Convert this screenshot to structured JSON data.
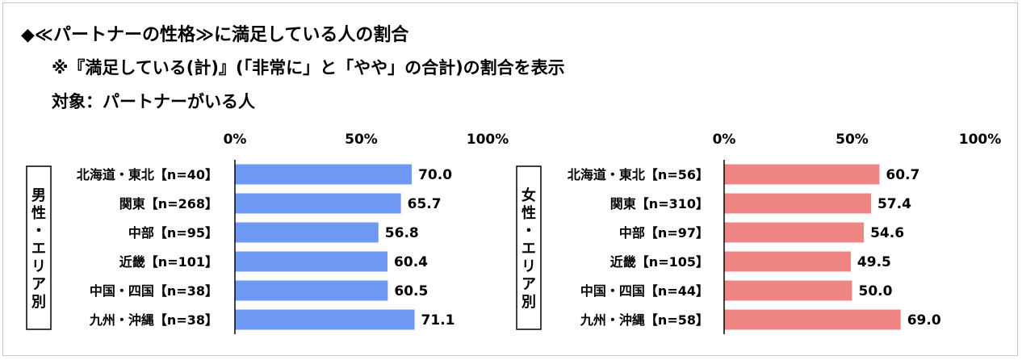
{
  "title": "◆≪パートナーの性格≫に満足している人の割合",
  "note": "※『満足している(計)』(「非常に」と「やや」の合計)の割合を表示",
  "target": "対象：パートナーがいる人",
  "colors": {
    "male_bar": "#6f98f2",
    "female_bar": "#ef8582"
  },
  "chart_data": [
    {
      "type": "bar",
      "orientation": "horizontal",
      "group_label": "男性・エリア別",
      "categories": [
        "北海道・東北【n=40】",
        "関東【n=268】",
        "中部【n=95】",
        "近畿【n=101】",
        "中国・四国【n=38】",
        "九州・沖縄【n=38】"
      ],
      "values": [
        70.0,
        65.7,
        56.8,
        60.4,
        60.5,
        71.1
      ],
      "value_labels": [
        "70.0",
        "65.7",
        "56.8",
        "60.4",
        "60.5",
        "71.1"
      ],
      "xlim": [
        0,
        100
      ],
      "xticks": [
        "0%",
        "50%",
        "100%"
      ],
      "color": "#6f98f2"
    },
    {
      "type": "bar",
      "orientation": "horizontal",
      "group_label": "女性・エリア別",
      "categories": [
        "北海道・東北【n=56】",
        "関東【n=310】",
        "中部【n=97】",
        "近畿【n=105】",
        "中国・四国【n=44】",
        "九州・沖縄【n=58】"
      ],
      "values": [
        60.7,
        57.4,
        54.6,
        49.5,
        50.0,
        69.0
      ],
      "value_labels": [
        "60.7",
        "57.4",
        "54.6",
        "49.5",
        "50.0",
        "69.0"
      ],
      "xlim": [
        0,
        100
      ],
      "xticks": [
        "0%",
        "50%",
        "100%"
      ],
      "color": "#ef8582"
    }
  ]
}
